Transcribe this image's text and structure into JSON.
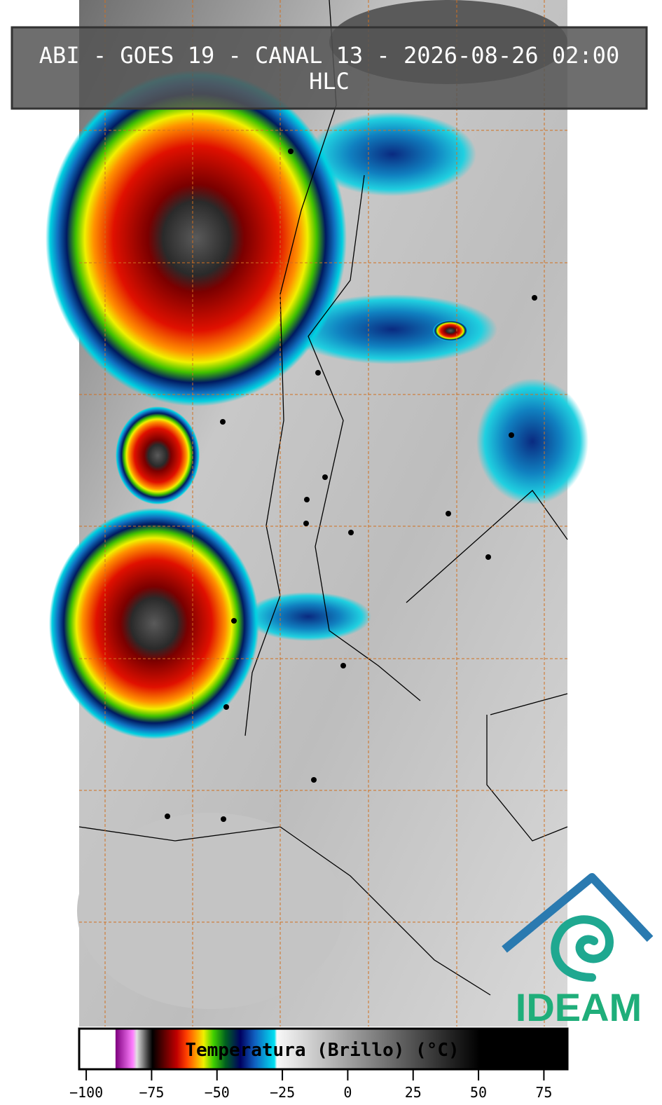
{
  "header": {
    "title": "ABI - GOES 19 - CANAL 13 - 2026-08-26 02:00",
    "subtitle": "HLC"
  },
  "colorbar": {
    "label": "Temperatura (Brillo) (°C)",
    "lim": [
      -102.7,
      84
    ],
    "ticks": [
      {
        "value": -100,
        "label": "−100"
      },
      {
        "value": -75,
        "label": "−75"
      },
      {
        "value": -50,
        "label": "−50"
      },
      {
        "value": -25,
        "label": "−25"
      },
      0,
      25,
      50,
      75
    ]
  },
  "logo": {
    "text": "IDEAM"
  }
}
